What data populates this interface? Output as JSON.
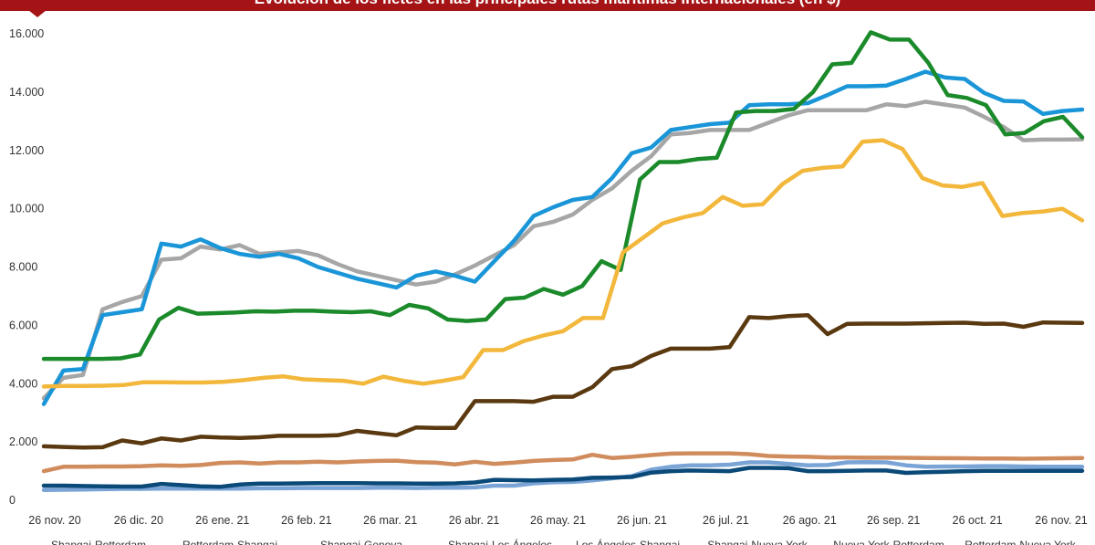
{
  "chart_data": {
    "type": "line",
    "title": "Evolución de los fletes en las principales rutas marítimas internacionales (en $)",
    "xlabel": "",
    "ylabel": "",
    "ylim": [
      0,
      16000
    ],
    "yticks": [
      "0",
      "2.000",
      "4.000",
      "6.000",
      "8.000",
      "10.000",
      "12.000",
      "14.000",
      "16.000"
    ],
    "x_tick_labels": [
      "26 nov. 20",
      "26 dic. 20",
      "26 ene. 21",
      "26 feb. 21",
      "26 mar. 21",
      "26 abr. 21",
      "26 may. 21",
      "26 jun. 21",
      "26 jul. 21",
      "26 ago. 21",
      "26 sep. 21",
      "26 oct. 21",
      "26 nov. 21"
    ],
    "grid": false,
    "legend_position": "bottom",
    "legend_labels": [
      "Shangai-Rotterdam",
      "Rotterdam-Shangai",
      "Shangai-Genova",
      "Shangai-Los Ángeles",
      "Los Ángeles-Shangai",
      "Shangai-Nueva York",
      "Nueva York-Rotterdam",
      "Rotterdam-Nueva York"
    ],
    "series": [
      {
        "color": "#a6a6a6",
        "values": [
          3500,
          4200,
          4300,
          6550,
          6800,
          7000,
          8250,
          8300,
          8700,
          8600,
          8750,
          8450,
          8500,
          8550,
          8400,
          8100,
          7850,
          7700,
          7550,
          7400,
          7500,
          7750,
          8050,
          8400,
          8750,
          9400,
          9550,
          9800,
          10300,
          10700,
          11300,
          11800,
          12550,
          12600,
          12700,
          12700,
          12700,
          12950,
          13200,
          13380,
          13380,
          13380,
          13380,
          13580,
          13520,
          13670,
          13570,
          13470,
          13150,
          12800,
          12350,
          12370,
          12370,
          12380
        ]
      },
      {
        "color": "#1a96d8",
        "values": [
          3300,
          4450,
          4500,
          6350,
          6450,
          6550,
          8800,
          8700,
          8950,
          8650,
          8450,
          8350,
          8450,
          8300,
          8000,
          7800,
          7600,
          7450,
          7300,
          7700,
          7850,
          7700,
          7500,
          8200,
          8900,
          9750,
          10050,
          10300,
          10400,
          11050,
          11900,
          12100,
          12700,
          12800,
          12900,
          12950,
          13550,
          13580,
          13580,
          13620,
          13900,
          14200,
          14200,
          14220,
          14450,
          14700,
          14500,
          14450,
          13970,
          13700,
          13680,
          13250,
          13350,
          13400
        ]
      },
      {
        "color": "#1a8a2a",
        "values": [
          4850,
          4850,
          4850,
          4850,
          4870,
          5000,
          6200,
          6600,
          6400,
          6420,
          6440,
          6480,
          6470,
          6500,
          6500,
          6470,
          6450,
          6480,
          6350,
          6700,
          6580,
          6200,
          6150,
          6200,
          6900,
          6950,
          7250,
          7050,
          7350,
          8200,
          7900,
          11000,
          11600,
          11600,
          11700,
          11750,
          13300,
          13350,
          13350,
          13420,
          14000,
          14950,
          15000,
          16050,
          15800,
          15800,
          15000,
          13900,
          13800,
          13550,
          12550,
          12600,
          13000,
          13150,
          12450
        ]
      },
      {
        "color": "#f2b73b",
        "values": [
          3900,
          3920,
          3920,
          3930,
          3950,
          4050,
          4050,
          4040,
          4040,
          4060,
          4120,
          4200,
          4250,
          4150,
          4120,
          4100,
          4000,
          4240,
          4100,
          4000,
          4100,
          4220,
          5150,
          5150,
          5450,
          5650,
          5800,
          6250,
          6250,
          8500,
          9000,
          9500,
          9700,
          9850,
          10400,
          10100,
          10150,
          10850,
          11300,
          11400,
          11450,
          12300,
          12350,
          12050,
          11050,
          10800,
          10750,
          10880,
          9750,
          9850,
          9900,
          10000,
          9600
        ]
      },
      {
        "color": "#5a3810",
        "values": [
          1850,
          1830,
          1810,
          1820,
          2050,
          1950,
          2120,
          2050,
          2180,
          2150,
          2140,
          2160,
          2210,
          2210,
          2210,
          2230,
          2380,
          2300,
          2230,
          2500,
          2480,
          2480,
          3400,
          3400,
          3400,
          3380,
          3550,
          3550,
          3880,
          4500,
          4600,
          4950,
          5200,
          5200,
          5200,
          5250,
          6280,
          6250,
          6320,
          6350,
          5700,
          6050,
          6060,
          6060,
          6060,
          6070,
          6080,
          6090,
          6050,
          6060,
          5950,
          6100,
          6090,
          6080
        ]
      },
      {
        "color": "#d08c5c",
        "values": [
          1000,
          1150,
          1150,
          1160,
          1160,
          1170,
          1200,
          1180,
          1210,
          1280,
          1300,
          1260,
          1300,
          1300,
          1320,
          1300,
          1330,
          1350,
          1360,
          1310,
          1290,
          1230,
          1320,
          1250,
          1290,
          1350,
          1380,
          1400,
          1560,
          1450,
          1490,
          1550,
          1600,
          1610,
          1610,
          1610,
          1580,
          1520,
          1500,
          1490,
          1470,
          1470,
          1460,
          1460,
          1455,
          1450,
          1445,
          1440,
          1435,
          1430,
          1425,
          1430,
          1440,
          1450
        ]
      },
      {
        "color": "#7aa4d6",
        "values": [
          350,
          360,
          370,
          380,
          390,
          390,
          400,
          400,
          400,
          400,
          400,
          410,
          410,
          420,
          420,
          420,
          420,
          430,
          430,
          420,
          430,
          430,
          440,
          500,
          500,
          580,
          620,
          630,
          680,
          750,
          830,
          1050,
          1150,
          1200,
          1200,
          1220,
          1300,
          1300,
          1250,
          1200,
          1210,
          1300,
          1310,
          1300,
          1200,
          1150,
          1160,
          1160,
          1170,
          1170,
          1160,
          1150,
          1150,
          1150
        ]
      },
      {
        "color": "#0b4a78",
        "values": [
          500,
          500,
          490,
          480,
          470,
          470,
          560,
          520,
          480,
          460,
          540,
          570,
          570,
          580,
          590,
          590,
          590,
          580,
          580,
          570,
          570,
          580,
          610,
          700,
          690,
          680,
          700,
          710,
          770,
          780,
          800,
          950,
          1000,
          1020,
          1010,
          1000,
          1110,
          1110,
          1100,
          1000,
          1000,
          1010,
          1020,
          1020,
          940,
          960,
          980,
          1000,
          1010,
          1010,
          1010,
          1010,
          1010,
          1010
        ]
      }
    ]
  }
}
